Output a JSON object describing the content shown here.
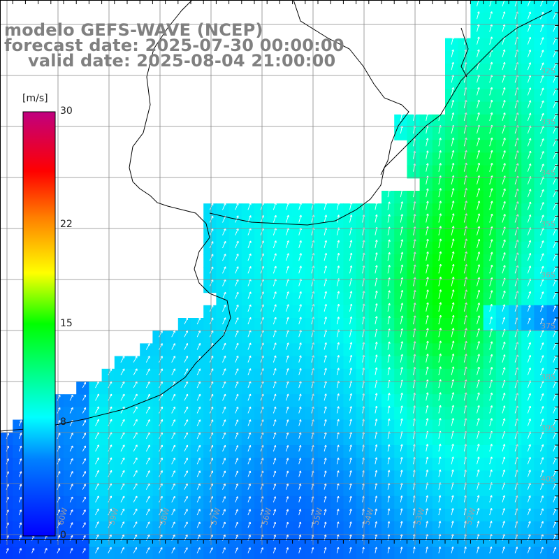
{
  "header": {
    "title_line1": "modelo GEFS-WAVE (NCEP)",
    "title_line2": "forecast date: 2025-07-30 00:00:00",
    "title_line3": "valid date: 2025-08-04 21:00:00"
  },
  "colorbar": {
    "unit": "[m/s]",
    "ticks": [
      {
        "label": "30",
        "value": 30
      },
      {
        "label": "22",
        "value": 22
      },
      {
        "label": "15",
        "value": 15
      },
      {
        "label": "8",
        "value": 8
      },
      {
        "label": "0",
        "value": 0
      }
    ],
    "range": [
      0,
      30
    ],
    "colors": [
      "#0000ff",
      "#00c0ff",
      "#00ffff",
      "#00ff00",
      "#ffff00",
      "#ff8000",
      "#ff0000",
      "#c00080"
    ]
  },
  "map": {
    "lat_labels": [
      "32S",
      "33S",
      "34S",
      "35S",
      "36S",
      "37S",
      "38S",
      "39S",
      "40S"
    ],
    "lon_labels": [
      "60W",
      "59W",
      "58W",
      "57W",
      "56W",
      "55W",
      "54W",
      "53W",
      "52W"
    ],
    "field": "wind speed with direction arrows",
    "max_wind_region": "offshore southeast of Uruguay"
  }
}
